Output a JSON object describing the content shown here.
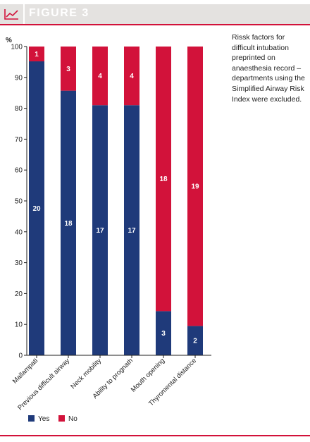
{
  "figure": {
    "title": "FIGURE 3"
  },
  "caption": "Rissk factors for difficult intubation preprinted on anaesthesia record – departments using the Simplified Airway Risk Index were excluded.",
  "colors": {
    "accent": "#d2123a",
    "yes": "#1f3a7a",
    "no": "#d2123a",
    "header_bg": "#e4e2e0"
  },
  "chart_data": {
    "type": "bar",
    "stacked": true,
    "ylabel": "%",
    "ylim": [
      0,
      100
    ],
    "yticks": [
      "0",
      "10",
      "20",
      "30",
      "40",
      "50",
      "60",
      "70",
      "80",
      "90",
      "100"
    ],
    "categories": [
      "Mallampati",
      "Previous difficult airway",
      "Neck mobility",
      "Ability to prognath",
      "Mouth opening",
      "Thyromental distance"
    ],
    "series": [
      {
        "name": "Yes",
        "percent": [
          95.2,
          85.7,
          81.0,
          81.0,
          14.3,
          9.5
        ],
        "labels": [
          "20",
          "18",
          "17",
          "17",
          "3",
          "2"
        ]
      },
      {
        "name": "No",
        "percent": [
          4.8,
          14.3,
          19.0,
          19.0,
          85.7,
          90.5
        ],
        "labels": [
          "1",
          "3",
          "4",
          "4",
          "18",
          "19"
        ]
      }
    ],
    "legend": "bottom-left"
  }
}
